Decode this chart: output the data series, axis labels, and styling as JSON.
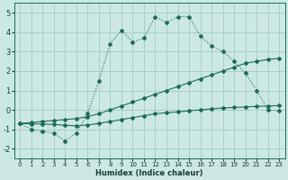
{
  "xlabel": "Humidex (Indice chaleur)",
  "bg_color": "#cce8e5",
  "grid_color": "#aaccca",
  "line_color": "#1a6b5a",
  "xlim": [
    -0.5,
    23.5
  ],
  "ylim": [
    -2.5,
    5.5
  ],
  "xticks": [
    0,
    1,
    2,
    3,
    4,
    5,
    6,
    7,
    8,
    9,
    10,
    11,
    12,
    13,
    14,
    15,
    16,
    17,
    18,
    19,
    20,
    21,
    22,
    23
  ],
  "yticks": [
    -2,
    -1,
    0,
    1,
    2,
    3,
    4,
    5
  ],
  "series1_x": [
    0,
    1,
    2,
    3,
    4,
    5,
    6,
    7,
    8,
    9,
    10,
    11,
    12,
    13,
    14,
    15,
    16,
    17,
    18,
    19,
    20,
    21,
    22,
    23
  ],
  "series1_y": [
    -0.7,
    -1.0,
    -1.1,
    -1.2,
    -1.6,
    -1.2,
    -0.2,
    1.5,
    3.4,
    4.1,
    3.5,
    3.7,
    4.8,
    4.5,
    4.8,
    4.8,
    3.8,
    3.3,
    3.0,
    2.5,
    1.9,
    1.0,
    0.0,
    -0.05
  ],
  "series2_x": [
    0,
    1,
    2,
    3,
    4,
    5,
    6,
    7,
    8,
    9,
    10,
    11,
    12,
    13,
    14,
    15,
    16,
    17,
    18,
    19,
    20,
    21,
    22,
    23
  ],
  "series2_y": [
    -0.7,
    -0.65,
    -0.6,
    -0.55,
    -0.5,
    -0.45,
    -0.35,
    -0.2,
    0.0,
    0.2,
    0.4,
    0.6,
    0.8,
    1.0,
    1.2,
    1.4,
    1.6,
    1.8,
    2.0,
    2.2,
    2.4,
    2.5,
    2.6,
    2.65
  ],
  "series3_x": [
    0,
    1,
    2,
    3,
    4,
    5,
    6,
    7,
    8,
    9,
    10,
    11,
    12,
    13,
    14,
    15,
    16,
    17,
    18,
    19,
    20,
    21,
    22,
    23
  ],
  "series3_y": [
    -0.7,
    -0.72,
    -0.73,
    -0.75,
    -0.8,
    -0.82,
    -0.78,
    -0.7,
    -0.6,
    -0.5,
    -0.4,
    -0.3,
    -0.2,
    -0.15,
    -0.1,
    -0.05,
    0.0,
    0.05,
    0.1,
    0.12,
    0.15,
    0.18,
    0.2,
    0.22
  ]
}
